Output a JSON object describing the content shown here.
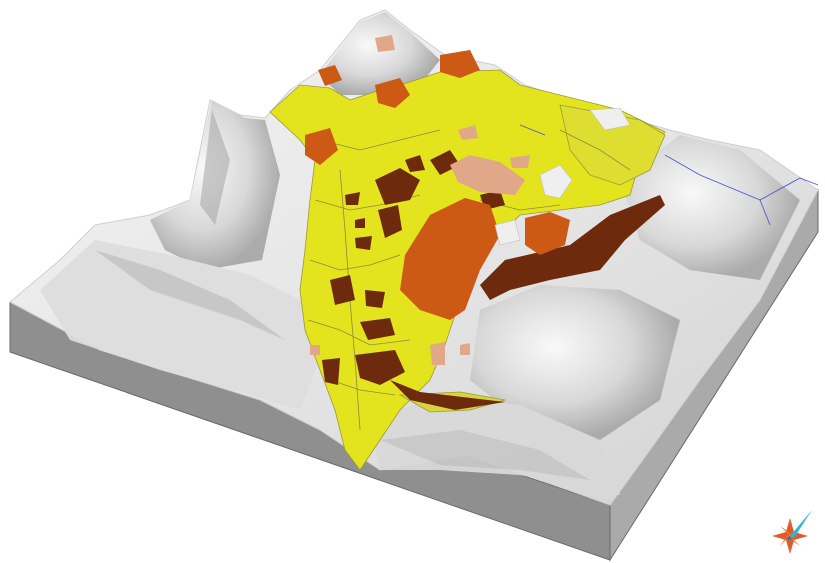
{
  "colors": {
    "background": "#ffffff",
    "terrain_light": "#f0f0f0",
    "terrain_mid": "#d0d0d0",
    "terrain_shadow": "#9c9c9c",
    "side_front": "#8f8f8f",
    "side_right": "#a9a9a9",
    "valley_yellow": "#e3e31e",
    "valley_yellow_pale": "#d6d63a",
    "unit_dark_brown": "#6e2a0c",
    "unit_orange": "#cc5a14",
    "unit_peach": "#e0a888",
    "stream_blue": "#4a5bc8",
    "compass_orange": "#e05a2a",
    "compass_cyan": "#2bb8d8"
  },
  "map_units": [
    {
      "name": "valley-fill-unit",
      "color": "#e3e31e"
    },
    {
      "name": "dark-brown-unit",
      "color": "#6e2a0c"
    },
    {
      "name": "orange-unit",
      "color": "#cc5a14"
    },
    {
      "name": "peach-unit",
      "color": "#e0a888"
    }
  ],
  "icons": {
    "north_arrow": "compass-star-icon"
  }
}
